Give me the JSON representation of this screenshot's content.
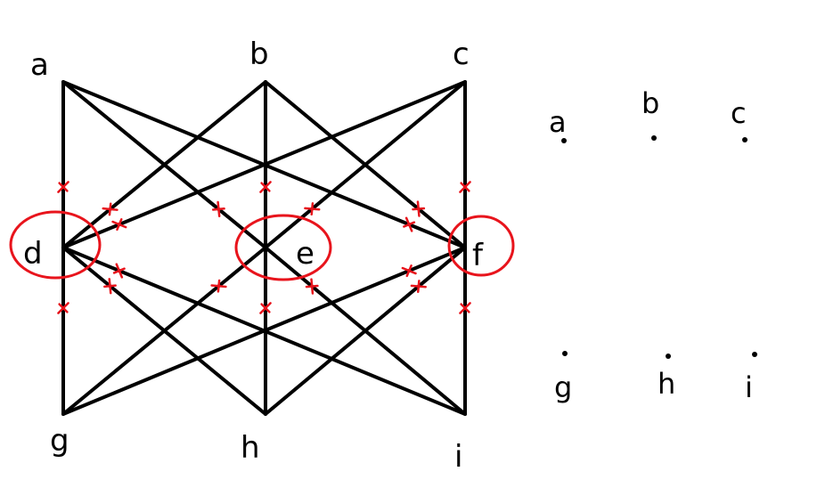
{
  "graph": {
    "vertices": [
      {
        "id": "a",
        "label": "a"
      },
      {
        "id": "b",
        "label": "b"
      },
      {
        "id": "c",
        "label": "c"
      },
      {
        "id": "d",
        "label": "d"
      },
      {
        "id": "e",
        "label": "e"
      },
      {
        "id": "f",
        "label": "f"
      },
      {
        "id": "g",
        "label": "g"
      },
      {
        "id": "h",
        "label": "h"
      },
      {
        "id": "i",
        "label": "i"
      }
    ],
    "edges": [
      [
        "a",
        "d"
      ],
      [
        "d",
        "g"
      ],
      [
        "b",
        "e"
      ],
      [
        "e",
        "h"
      ],
      [
        "c",
        "f"
      ],
      [
        "f",
        "i"
      ],
      [
        "a",
        "e"
      ],
      [
        "a",
        "f"
      ],
      [
        "b",
        "d"
      ],
      [
        "b",
        "f"
      ],
      [
        "c",
        "d"
      ],
      [
        "c",
        "e"
      ],
      [
        "g",
        "e"
      ],
      [
        "g",
        "f"
      ],
      [
        "h",
        "d"
      ],
      [
        "h",
        "f"
      ],
      [
        "i",
        "d"
      ],
      [
        "i",
        "e"
      ]
    ],
    "highlighted_vertices": [
      "d",
      "e",
      "f"
    ]
  },
  "remaining_graph": {
    "vertices": [
      {
        "id": "a",
        "label": "a"
      },
      {
        "id": "b",
        "label": "b"
      },
      {
        "id": "c",
        "label": "c"
      },
      {
        "id": "g",
        "label": "g"
      },
      {
        "id": "h",
        "label": "h"
      },
      {
        "id": "i",
        "label": "i"
      }
    ]
  },
  "colors": {
    "ink": "#000000",
    "mark": "#e8141c",
    "background": "#ffffff"
  }
}
